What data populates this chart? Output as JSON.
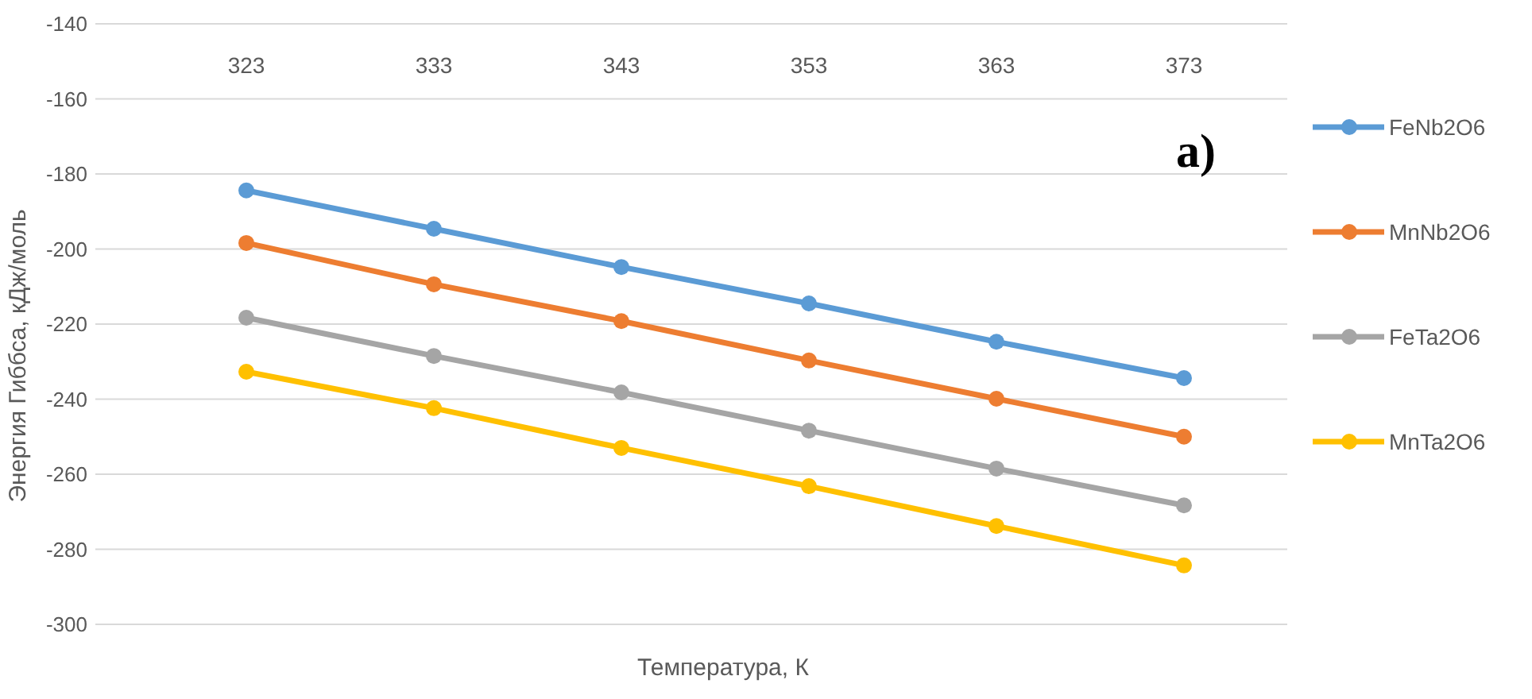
{
  "chart_data": {
    "type": "line",
    "xlabel": "Температура, К",
    "ylabel": "Энергия Гиббса, кДж/моль",
    "categories": [
      "323",
      "333",
      "343",
      "353",
      "363",
      "373"
    ],
    "series": [
      {
        "name": "FeNb2O6",
        "color": "#5b9bd5",
        "values": [
          -184.4,
          -194.6,
          -204.8,
          -214.5,
          -224.7,
          -234.4
        ]
      },
      {
        "name": "MnNb2O6",
        "color": "#ed7d31",
        "values": [
          -198.4,
          -209.4,
          -219.2,
          -229.7,
          -239.9,
          -250
        ]
      },
      {
        "name": "FeTa2O6",
        "color": "#a5a5a5",
        "values": [
          -218.3,
          -228.5,
          -238.2,
          -248.4,
          -258.5,
          -268.3
        ]
      },
      {
        "name": "MnTa2O6",
        "color": "#ffc000",
        "values": [
          -232.7,
          -242.4,
          -253,
          -263.2,
          -273.8,
          -284.3
        ]
      }
    ],
    "ylim": [
      -300,
      -140
    ],
    "yticks": [
      -140,
      -160,
      -180,
      -200,
      -220,
      -240,
      -260,
      -280,
      -300
    ],
    "grid": "y",
    "legend": "right",
    "marker": "circle",
    "line_style": "solid",
    "annotations": [
      "a)"
    ]
  }
}
